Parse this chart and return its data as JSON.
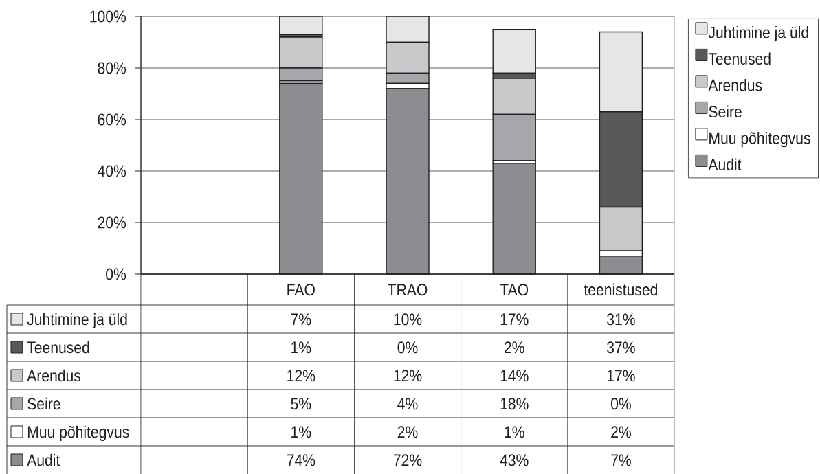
{
  "chart_data": {
    "type": "bar",
    "stacked": true,
    "categories": [
      null,
      "FAO",
      "TRAO",
      "TAO",
      "teenistused"
    ],
    "series": [
      {
        "name": "Audit",
        "color": "#8c8d90",
        "values": [
          null,
          74,
          72,
          43,
          7
        ],
        "value_labels": [
          null,
          "74%",
          "72%",
          "43%",
          "7%"
        ]
      },
      {
        "name": "Muu põhitegvus",
        "color": "#ffffff",
        "values": [
          null,
          1,
          2,
          1,
          2
        ],
        "value_labels": [
          null,
          "1%",
          "2%",
          "1%",
          "2%"
        ]
      },
      {
        "name": "Seire",
        "color": "#a6a7aa",
        "values": [
          null,
          5,
          4,
          18,
          0
        ],
        "value_labels": [
          null,
          "5%",
          "4%",
          "18%",
          "0%"
        ]
      },
      {
        "name": "Arendus",
        "color": "#c8c9cb",
        "values": [
          null,
          12,
          12,
          14,
          17
        ],
        "value_labels": [
          null,
          "12%",
          "12%",
          "14%",
          "17%"
        ]
      },
      {
        "name": "Teenused",
        "color": "#58595b",
        "values": [
          null,
          1,
          0,
          2,
          37
        ],
        "value_labels": [
          null,
          "1%",
          "0%",
          "2%",
          "37%"
        ]
      },
      {
        "name": "Juhtimine ja üld",
        "color": "#e6e6e6",
        "values": [
          null,
          7,
          10,
          17,
          31
        ],
        "value_labels": [
          null,
          "7%",
          "10%",
          "17%",
          "31%"
        ]
      }
    ],
    "ylim": [
      0,
      100
    ],
    "yticks": [
      {
        "value": 0,
        "label": "0%"
      },
      {
        "value": 20,
        "label": "20%"
      },
      {
        "value": 40,
        "label": "40%"
      },
      {
        "value": 60,
        "label": "60%"
      },
      {
        "value": 80,
        "label": "80%"
      },
      {
        "value": 100,
        "label": "100%"
      }
    ],
    "grid": "y",
    "legend": "right"
  }
}
